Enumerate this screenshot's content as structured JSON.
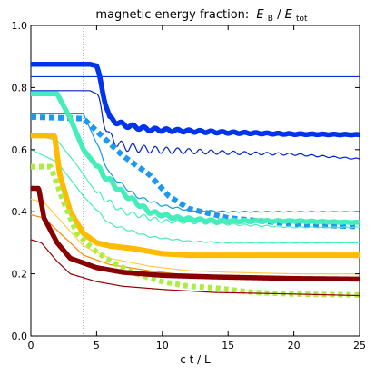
{
  "chart_data": {
    "type": "line",
    "title": "magnetic energy fraction:",
    "title_math": "E_B/E_tot",
    "title_math_base": "E",
    "title_math_sub_num": "B",
    "title_math_sub_den": "tot",
    "xlabel": "c t / L",
    "ylabel": "",
    "xlim": [
      0,
      25
    ],
    "ylim": [
      0.0,
      1.0
    ],
    "xticks": [
      "0",
      "5",
      "10",
      "15",
      "20",
      "25"
    ],
    "yticks": [
      "0.0",
      "0.2",
      "0.4",
      "0.6",
      "0.8",
      "1.0"
    ],
    "grid": false,
    "legend": "none",
    "vline": {
      "x": 4.0,
      "style": "dotted",
      "color": "#888888"
    },
    "series": [
      {
        "color": "#0033dd",
        "width": 1.2,
        "dash": "",
        "osc": 0,
        "points": [
          [
            0,
            0.835
          ],
          [
            25,
            0.835
          ]
        ]
      },
      {
        "color": "#0022cc",
        "width": 1.2,
        "dash": "",
        "osc": 0.018,
        "points": [
          [
            0,
            0.79
          ],
          [
            4.5,
            0.79
          ],
          [
            5.0,
            0.78
          ],
          [
            5.5,
            0.7
          ],
          [
            6.0,
            0.64
          ],
          [
            7,
            0.61
          ],
          [
            9,
            0.6
          ],
          [
            12,
            0.595
          ],
          [
            15,
            0.59
          ],
          [
            20,
            0.585
          ],
          [
            25,
            0.57
          ]
        ]
      },
      {
        "color": "#0033ee",
        "width": 5.5,
        "dash": "",
        "osc": 0.008,
        "points": [
          [
            0,
            0.875
          ],
          [
            4.5,
            0.875
          ],
          [
            5.0,
            0.87
          ],
          [
            5.5,
            0.78
          ],
          [
            6.0,
            0.7
          ],
          [
            7,
            0.68
          ],
          [
            9,
            0.665
          ],
          [
            12,
            0.66
          ],
          [
            15,
            0.655
          ],
          [
            20,
            0.65
          ],
          [
            25,
            0.648
          ]
        ]
      },
      {
        "color": "#1199ee",
        "width": 1.2,
        "dash": "",
        "osc": 0.006,
        "points": [
          [
            0,
            0.715
          ],
          [
            4.0,
            0.715
          ],
          [
            5.0,
            0.62
          ],
          [
            6.0,
            0.52
          ],
          [
            8,
            0.45
          ],
          [
            10,
            0.42
          ],
          [
            12,
            0.405
          ],
          [
            15,
            0.4
          ],
          [
            20,
            0.4
          ],
          [
            25,
            0.4
          ]
        ]
      },
      {
        "color": "#1a99ee",
        "width": 6,
        "dash": "6,4",
        "osc": 0,
        "points": [
          [
            0,
            0.705
          ],
          [
            4.0,
            0.7
          ],
          [
            5.5,
            0.64
          ],
          [
            7,
            0.58
          ],
          [
            9,
            0.52
          ],
          [
            10.5,
            0.45
          ],
          [
            12,
            0.41
          ],
          [
            15,
            0.38
          ],
          [
            20,
            0.36
          ],
          [
            25,
            0.352
          ]
        ]
      },
      {
        "color": "#44eebb",
        "width": 1.2,
        "dash": "",
        "osc": 0.01,
        "points": [
          [
            0,
            0.65
          ],
          [
            2.0,
            0.63
          ],
          [
            3.5,
            0.55
          ],
          [
            5,
            0.46
          ],
          [
            7,
            0.4
          ],
          [
            10,
            0.37
          ],
          [
            15,
            0.36
          ],
          [
            20,
            0.35
          ],
          [
            25,
            0.35
          ]
        ]
      },
      {
        "color": "#44eebb",
        "width": 1.2,
        "dash": "",
        "osc": 0.004,
        "points": [
          [
            0,
            0.6
          ],
          [
            2.0,
            0.56
          ],
          [
            4,
            0.45
          ],
          [
            6,
            0.36
          ],
          [
            9,
            0.32
          ],
          [
            12,
            0.305
          ],
          [
            15,
            0.3
          ],
          [
            20,
            0.3
          ],
          [
            25,
            0.3
          ]
        ]
      },
      {
        "color": "#44eebb",
        "width": 5.5,
        "dash": "",
        "osc": 0.008,
        "points": [
          [
            0,
            0.78
          ],
          [
            2.0,
            0.78
          ],
          [
            3.0,
            0.7
          ],
          [
            4.0,
            0.6
          ],
          [
            5.5,
            0.52
          ],
          [
            7,
            0.46
          ],
          [
            9,
            0.4
          ],
          [
            11,
            0.38
          ],
          [
            14,
            0.37
          ],
          [
            20,
            0.37
          ],
          [
            25,
            0.365
          ]
        ]
      },
      {
        "color": "#ffbb00",
        "width": 6,
        "dash": "",
        "osc": 0,
        "points": [
          [
            0,
            0.645
          ],
          [
            1.8,
            0.645
          ],
          [
            2.2,
            0.52
          ],
          [
            3,
            0.4
          ],
          [
            4,
            0.33
          ],
          [
            5,
            0.3
          ],
          [
            6,
            0.29
          ],
          [
            8,
            0.28
          ],
          [
            10,
            0.265
          ],
          [
            12,
            0.26
          ],
          [
            15,
            0.26
          ],
          [
            20,
            0.26
          ],
          [
            25,
            0.26
          ]
        ]
      },
      {
        "color": "#ffcc44",
        "width": 1.2,
        "dash": "",
        "osc": 0,
        "points": [
          [
            0,
            0.44
          ],
          [
            1,
            0.43
          ],
          [
            2.5,
            0.36
          ],
          [
            4,
            0.29
          ],
          [
            6,
            0.25
          ],
          [
            9,
            0.225
          ],
          [
            12,
            0.21
          ],
          [
            15,
            0.205
          ],
          [
            20,
            0.2
          ],
          [
            25,
            0.2
          ]
        ]
      },
      {
        "color": "#ff8800",
        "width": 1.2,
        "dash": "",
        "osc": 0,
        "points": [
          [
            0,
            0.39
          ],
          [
            1,
            0.38
          ],
          [
            2.5,
            0.32
          ],
          [
            4,
            0.26
          ],
          [
            6,
            0.23
          ],
          [
            9,
            0.21
          ],
          [
            12,
            0.195
          ],
          [
            15,
            0.19
          ],
          [
            20,
            0.19
          ],
          [
            25,
            0.185
          ]
        ]
      },
      {
        "color": "#aaee44",
        "width": 6,
        "dash": "5,4",
        "osc": 0,
        "points": [
          [
            0,
            0.545
          ],
          [
            1.5,
            0.545
          ],
          [
            2.5,
            0.43
          ],
          [
            3.5,
            0.33
          ],
          [
            5,
            0.27
          ],
          [
            6.5,
            0.23
          ],
          [
            8,
            0.2
          ],
          [
            10,
            0.175
          ],
          [
            12,
            0.16
          ],
          [
            14,
            0.155
          ],
          [
            17,
            0.14
          ],
          [
            20,
            0.135
          ],
          [
            25,
            0.132
          ]
        ]
      },
      {
        "color": "#880000",
        "width": 5.5,
        "dash": "",
        "osc": 0,
        "points": [
          [
            0,
            0.475
          ],
          [
            0.6,
            0.475
          ],
          [
            1.0,
            0.38
          ],
          [
            2,
            0.3
          ],
          [
            3,
            0.25
          ],
          [
            5,
            0.22
          ],
          [
            7,
            0.205
          ],
          [
            10,
            0.195
          ],
          [
            14,
            0.19
          ],
          [
            20,
            0.185
          ],
          [
            25,
            0.183
          ]
        ]
      },
      {
        "color": "#990000",
        "width": 1.2,
        "dash": "",
        "osc": 0,
        "points": [
          [
            0,
            0.31
          ],
          [
            0.8,
            0.3
          ],
          [
            2,
            0.24
          ],
          [
            3,
            0.2
          ],
          [
            5,
            0.175
          ],
          [
            7,
            0.16
          ],
          [
            10,
            0.15
          ],
          [
            14,
            0.14
          ],
          [
            20,
            0.135
          ],
          [
            25,
            0.13
          ]
        ]
      }
    ]
  }
}
